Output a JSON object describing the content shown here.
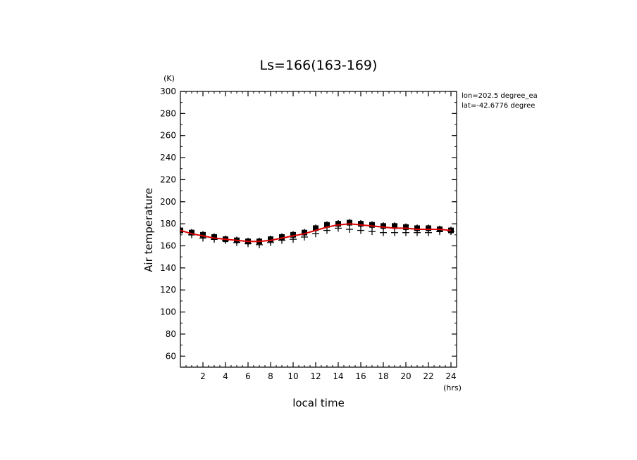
{
  "chart_data": {
    "type": "scatter",
    "title": "Ls=166(163-169)",
    "xlabel": "local time",
    "xunit": "(hrs)",
    "ylabel": "Air temperature",
    "yunit": "(K)",
    "annotations": [
      "lon=202.5 degree_ea",
      "lat=-42.6776 degree"
    ],
    "xlim": [
      0,
      24.5
    ],
    "ylim": [
      50,
      300
    ],
    "xticks": [
      2,
      4,
      6,
      8,
      10,
      12,
      14,
      16,
      18,
      20,
      22,
      24
    ],
    "yticks": [
      60,
      80,
      100,
      120,
      140,
      160,
      180,
      200,
      220,
      240,
      260,
      280,
      300
    ],
    "grid": false,
    "series": [
      {
        "marker": "filled-square",
        "color": "#000000",
        "x": [
          0,
          1,
          2,
          3,
          4,
          5,
          6,
          7,
          8,
          9,
          10,
          11,
          12,
          13,
          14,
          15,
          16,
          17,
          18,
          19,
          20,
          21,
          22,
          23,
          24
        ],
        "y": [
          174,
          172,
          170,
          168,
          166,
          165,
          164,
          164,
          166,
          168,
          170,
          172,
          176,
          179,
          180,
          181,
          180,
          179,
          178,
          178,
          177,
          176,
          176,
          175,
          174
        ],
        "error": [
          2,
          2,
          2,
          2,
          2,
          2,
          2,
          2,
          2,
          2,
          2,
          2,
          2,
          2,
          2,
          2,
          2,
          2,
          2,
          2,
          2,
          2,
          2,
          2,
          2
        ]
      },
      {
        "marker": "plus",
        "color": "#000000",
        "x": [
          1,
          2,
          3,
          4,
          5,
          6,
          7,
          8,
          9,
          10,
          11,
          12,
          13,
          14,
          15,
          16,
          17,
          18,
          19,
          20,
          21,
          22,
          23,
          24
        ],
        "y": [
          170,
          167,
          166,
          165,
          163,
          162,
          161,
          163,
          165,
          166,
          168,
          171,
          174,
          176,
          175,
          174,
          173,
          172,
          172,
          172,
          172,
          172,
          173,
          173
        ]
      },
      {
        "marker": "line",
        "color": "#dd0000",
        "x": [
          0,
          1,
          2,
          3,
          4,
          5,
          6,
          7,
          8,
          9,
          10,
          11,
          12,
          13,
          14,
          15,
          16,
          17,
          18,
          19,
          20,
          21,
          22,
          23,
          24
        ],
        "y": [
          174,
          171,
          169,
          167,
          166,
          165,
          164,
          164,
          165,
          167,
          169,
          171,
          174,
          177,
          179,
          180,
          179,
          178,
          177,
          176,
          176,
          175,
          175,
          175,
          174
        ]
      }
    ]
  }
}
